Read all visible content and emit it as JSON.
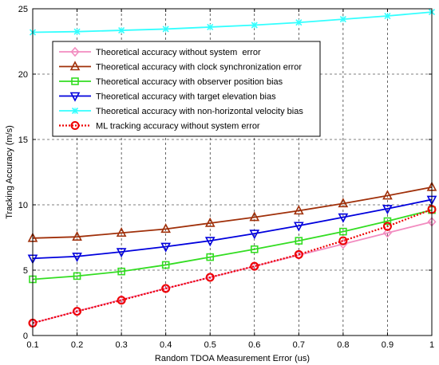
{
  "chart_data": {
    "type": "line",
    "xlabel": "Random TDOA Measurement Error (us)",
    "ylabel": "Tracking Accuracy (m/s)",
    "xlim": [
      0.1,
      1
    ],
    "ylim": [
      0,
      25
    ],
    "xticks": [
      "0.1",
      "0.2",
      "0.3",
      "0.4",
      "0.5",
      "0.6",
      "0.7",
      "0.8",
      "0.9",
      "1"
    ],
    "yticks": [
      "0",
      "5",
      "10",
      "15",
      "20",
      "25"
    ],
    "grid": true,
    "legend_position": "top-left",
    "x": [
      0.1,
      0.2,
      0.3,
      0.4,
      0.5,
      0.6,
      0.7,
      0.8,
      0.9,
      1.0
    ],
    "series": [
      {
        "name": "Theoretical accuracy without system  error",
        "color": "#f28cc0",
        "marker": "diamond",
        "line": "solid",
        "values": [
          0.95,
          1.85,
          2.75,
          3.6,
          4.45,
          5.3,
          6.15,
          7.0,
          7.85,
          8.7
        ]
      },
      {
        "name": "Theoretical accuracy with clock synchronization error",
        "color": "#a0300a",
        "marker": "triangle-up",
        "line": "solid",
        "values": [
          7.45,
          7.55,
          7.85,
          8.15,
          8.6,
          9.05,
          9.55,
          10.1,
          10.7,
          11.35
        ]
      },
      {
        "name": "Theoretical accuracy with observer position bias",
        "color": "#33dd22",
        "marker": "square",
        "line": "solid",
        "values": [
          4.3,
          4.55,
          4.9,
          5.4,
          6.0,
          6.6,
          7.25,
          7.95,
          8.75,
          9.6
        ]
      },
      {
        "name": "Theoretical accuracy with target elevation bias",
        "color": "#0000dd",
        "marker": "triangle-down",
        "line": "solid",
        "values": [
          5.9,
          6.05,
          6.4,
          6.8,
          7.25,
          7.8,
          8.4,
          9.05,
          9.7,
          10.4
        ]
      },
      {
        "name": "Theoretical accuracy with non-horizontal velocity bias",
        "color": "#33ffff",
        "marker": "x",
        "line": "solid",
        "values": [
          23.2,
          23.25,
          23.35,
          23.45,
          23.6,
          23.75,
          23.95,
          24.2,
          24.45,
          24.75
        ]
      },
      {
        "name": "ML tracking accuracy without system error",
        "color": "#ee0000",
        "marker": "circle",
        "line": "dotted",
        "values": [
          0.95,
          1.85,
          2.7,
          3.6,
          4.45,
          5.3,
          6.2,
          7.25,
          8.35,
          9.65
        ]
      }
    ]
  }
}
